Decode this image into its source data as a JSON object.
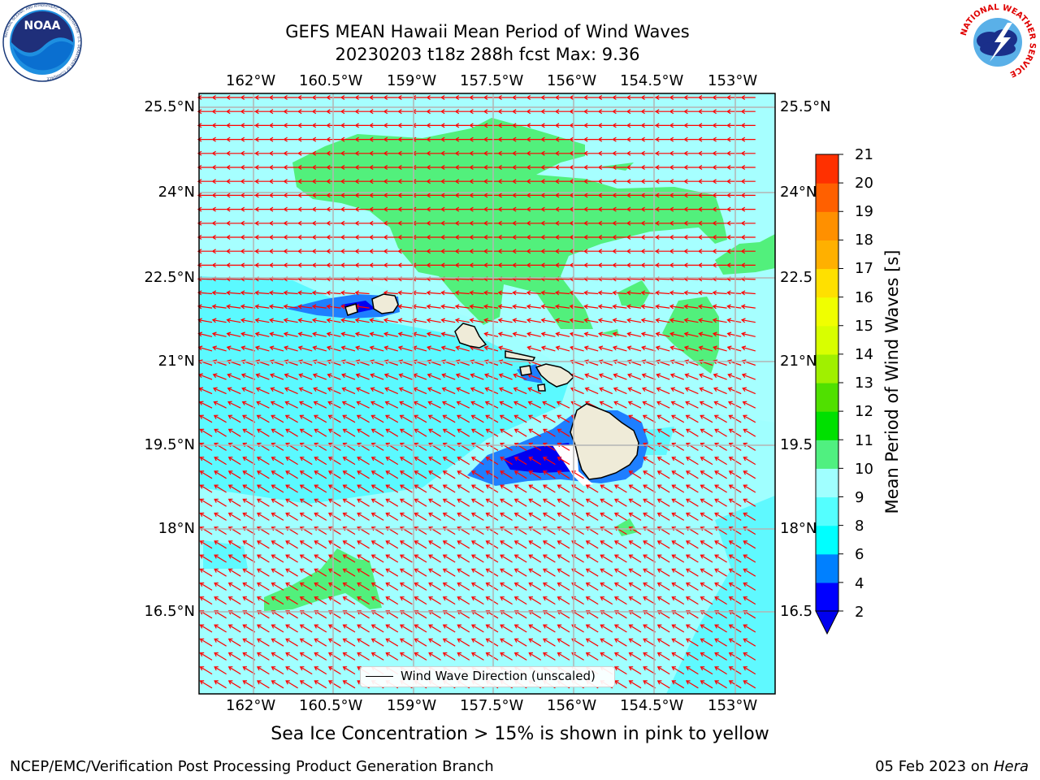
{
  "title": {
    "line1": "GEFS MEAN Hawaii Mean Period of Wind Waves",
    "line2": "20230203 t18z 288h fcst   Max: 9.36"
  },
  "logos": {
    "noaa": {
      "text": "NOAA",
      "ring_text": "NATIONAL OCEANIC AND ATMOSPHERIC ADMINISTRATION · U.S. DEPARTMENT OF COMMERCE"
    },
    "nws": {
      "ring_text": "NATIONAL WEATHER SERVICE"
    }
  },
  "map": {
    "lon_ticks": [
      "162°W",
      "160.5°W",
      "159°W",
      "157.5°W",
      "156°W",
      "154.5°W",
      "153°W"
    ],
    "lat_ticks_left": [
      "25.5°N",
      "24°N",
      "22.5°N",
      "21°N",
      "19.5°N",
      "18°N",
      "16.5°N"
    ],
    "lat_ticks_right": [
      "25.5°N",
      "24°N",
      "22.5",
      "21°N",
      "19.5",
      "18°N",
      "16.5"
    ],
    "legend_label": "Wind Wave Direction (unscaled)",
    "arrow_color": "#ff0000",
    "land_color": "#efebd8"
  },
  "colorbar": {
    "label": "Mean Period of Wind Waves [s]",
    "ticks": [
      "2",
      "4",
      "6",
      "8",
      "9",
      "10",
      "11",
      "12",
      "13",
      "14",
      "15",
      "16",
      "17",
      "18",
      "19",
      "20",
      "21"
    ],
    "colors": [
      "#0000ff",
      "#0080ff",
      "#00ffff",
      "#54ffff",
      "#a0ffff",
      "#50f080",
      "#00e000",
      "#50e000",
      "#a0f000",
      "#d8ff00",
      "#f0ff00",
      "#ffe000",
      "#ffb000",
      "#ff9000",
      "#ff6000",
      "#ff3000",
      "#ff0000"
    ],
    "under_color": "#0000ee"
  },
  "notes": {
    "ice": "Sea Ice Concentration > 15% is shown in pink to yellow",
    "footer_left": "NCEP/EMC/Verification Post Processing Product Generation Branch",
    "footer_date": "05 Feb 2023 on ",
    "footer_host": "Hera"
  }
}
